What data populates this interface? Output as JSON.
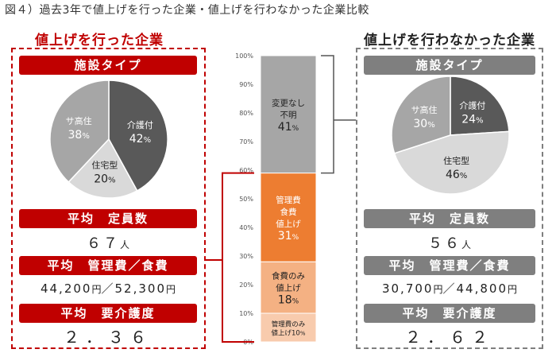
{
  "figure_title": "図４）過去3年で値上げを行った企業・値上げを行わなかった企業比較",
  "left": {
    "title": "値上げを行った企業",
    "facility_type_label": "施設タイプ",
    "capacity_label": "平均　定員数",
    "capacity_value": "６７",
    "capacity_unit": "人",
    "fee_label": "平均　管理費／食費",
    "fee_value1": "44,200",
    "fee_unit1": "円",
    "fee_sep": "／",
    "fee_value2": "52,300",
    "fee_unit2": "円",
    "care_label": "平均　要介護度",
    "care_value": "２．３６"
  },
  "right": {
    "title": "値上げを行わなかった企業",
    "facility_type_label": "施設タイプ",
    "capacity_label": "平均　定員数",
    "capacity_value": "５６",
    "capacity_unit": "人",
    "fee_label": "平均　管理費／食費",
    "fee_value1": "30,700",
    "fee_unit1": "円",
    "fee_sep": "／",
    "fee_value2": "44,800",
    "fee_unit2": "円",
    "care_label": "平均　要介護度",
    "care_value": "２．６２"
  },
  "colors": {
    "red": "#c00000",
    "gray_band": "#7f7f7f",
    "pie_dark": "#595959",
    "pie_mid": "#a6a6a6",
    "pie_light": "#d9d9d9",
    "bar_gray": "#a6a6a6",
    "bar_orange": "#ed7d31",
    "bar_peach": "#f4b183",
    "bar_light": "#f8cbad"
  },
  "chart_data": [
    {
      "type": "pie",
      "panel": "left",
      "slices": [
        {
          "label": "介護付",
          "value": 42,
          "value_text": "42",
          "unit": "%"
        },
        {
          "label": "住宅型",
          "value": 20,
          "value_text": "20",
          "unit": "%"
        },
        {
          "label": "サ高住",
          "value": 38,
          "value_text": "38",
          "unit": "%"
        }
      ]
    },
    {
      "type": "pie",
      "panel": "right",
      "slices": [
        {
          "label": "介護付",
          "value": 24,
          "value_text": "24",
          "unit": "%"
        },
        {
          "label": "住宅型",
          "value": 46,
          "value_text": "46",
          "unit": "%"
        },
        {
          "label": "サ高住",
          "value": 30,
          "value_text": "30",
          "unit": "%"
        }
      ]
    },
    {
      "type": "bar",
      "stacked": true,
      "ylim": [
        0,
        100
      ],
      "yticks": [
        "0%",
        "10%",
        "20%",
        "30%",
        "40%",
        "50%",
        "60%",
        "70%",
        "80%",
        "90%",
        "100%"
      ],
      "segments": [
        {
          "lines": [
            "管理費のみ",
            "値上げ"
          ],
          "value": 10,
          "value_text": "10",
          "unit": "%"
        },
        {
          "lines": [
            "食費のみ",
            "値上げ"
          ],
          "value": 18,
          "value_text": "18",
          "unit": "%"
        },
        {
          "lines": [
            "管理費",
            "食費",
            "値上げ"
          ],
          "value": 31,
          "value_text": "31",
          "unit": "%"
        },
        {
          "lines": [
            "変更なし",
            "不明"
          ],
          "value": 41,
          "value_text": "41",
          "unit": "%"
        }
      ]
    }
  ]
}
